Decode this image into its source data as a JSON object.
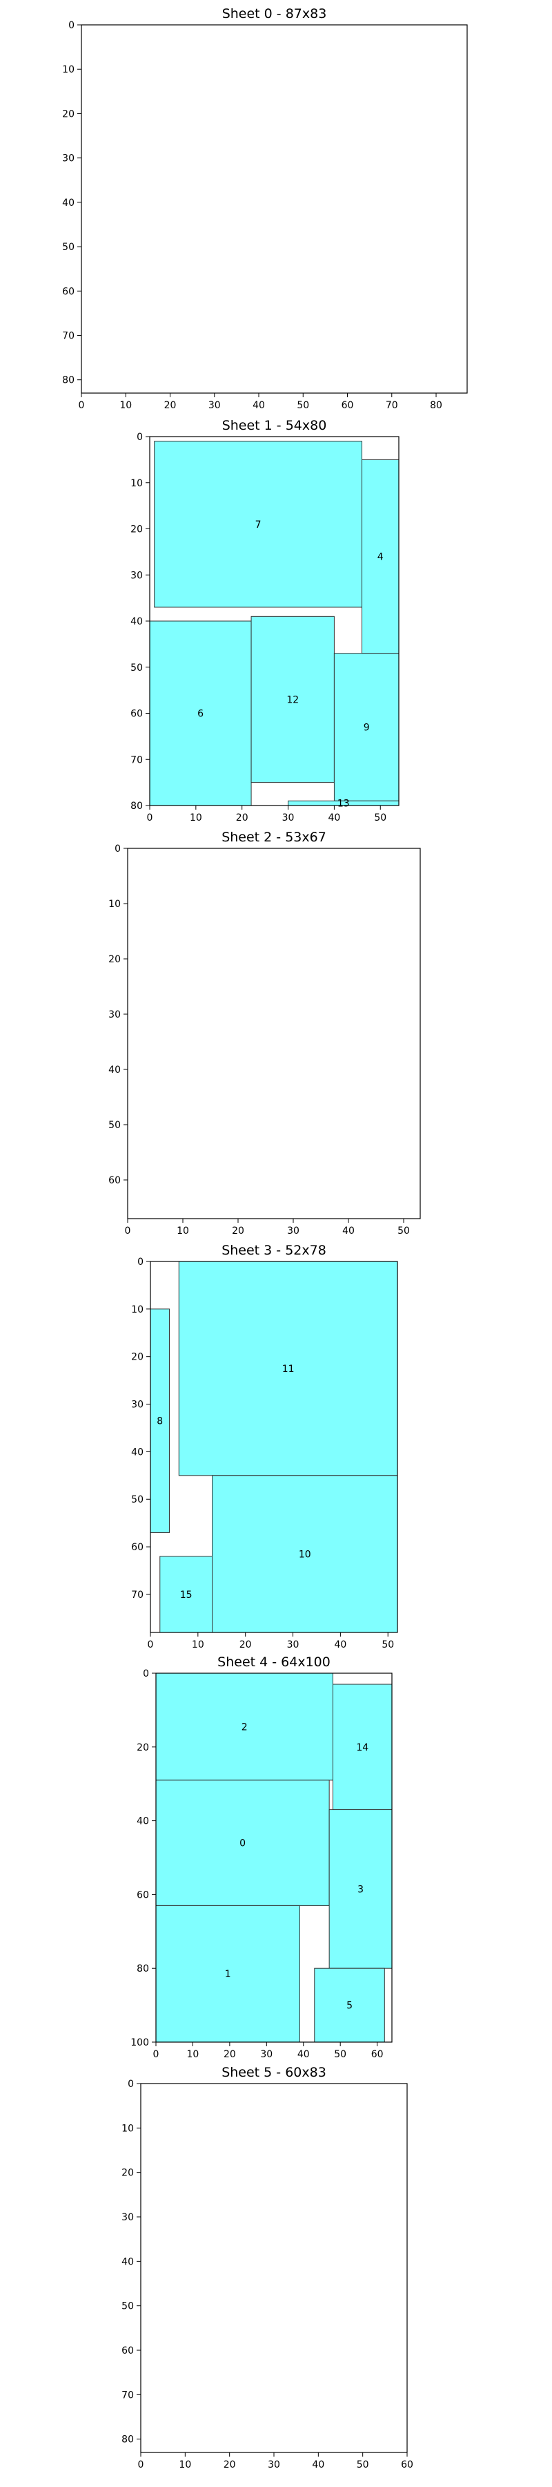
{
  "chart_data": [
    {
      "type": "rectangles",
      "title": "Sheet 0 - 87x83",
      "xlim": [
        0,
        87
      ],
      "ylim": [
        83,
        0
      ],
      "xticks": [
        0,
        10,
        20,
        30,
        40,
        50,
        60,
        70,
        80
      ],
      "yticks": [
        0,
        10,
        20,
        30,
        40,
        50,
        60,
        70,
        80
      ],
      "rects": []
    },
    {
      "type": "rectangles",
      "title": "Sheet 1 - 54x80",
      "xlim": [
        0,
        54
      ],
      "ylim": [
        80,
        0
      ],
      "xticks": [
        0,
        10,
        20,
        30,
        40,
        50
      ],
      "yticks": [
        0,
        10,
        20,
        30,
        40,
        50,
        60,
        70,
        80
      ],
      "rects": [
        {
          "label": "7",
          "x": 1,
          "y": 1,
          "w": 45,
          "h": 36
        },
        {
          "label": "4",
          "x": 46,
          "y": 5,
          "w": 8,
          "h": 42
        },
        {
          "label": "6",
          "x": 0,
          "y": 40,
          "w": 22,
          "h": 40
        },
        {
          "label": "12",
          "x": 22,
          "y": 39,
          "w": 18,
          "h": 36
        },
        {
          "label": "9",
          "x": 40,
          "y": 47,
          "w": 14,
          "h": 32
        },
        {
          "label": "13",
          "x": 30,
          "y": 79,
          "w": 24,
          "h": 1
        }
      ]
    },
    {
      "type": "rectangles",
      "title": "Sheet 2 - 53x67",
      "xlim": [
        0,
        53
      ],
      "ylim": [
        67,
        0
      ],
      "xticks": [
        0,
        10,
        20,
        30,
        40,
        50
      ],
      "yticks": [
        0,
        10,
        20,
        30,
        40,
        50,
        60
      ],
      "rects": []
    },
    {
      "type": "rectangles",
      "title": "Sheet 3 - 52x78",
      "xlim": [
        0,
        52
      ],
      "ylim": [
        78,
        0
      ],
      "xticks": [
        0,
        10,
        20,
        30,
        40,
        50
      ],
      "yticks": [
        0,
        10,
        20,
        30,
        40,
        50,
        60,
        70
      ],
      "rects": [
        {
          "label": "11",
          "x": 6,
          "y": 0,
          "w": 46,
          "h": 45
        },
        {
          "label": "8",
          "x": 0,
          "y": 10,
          "w": 4,
          "h": 47
        },
        {
          "label": "10",
          "x": 13,
          "y": 45,
          "w": 39,
          "h": 33
        },
        {
          "label": "15",
          "x": 2,
          "y": 62,
          "w": 11,
          "h": 16
        }
      ]
    },
    {
      "type": "rectangles",
      "title": "Sheet 4 - 64x100",
      "xlim": [
        0,
        64
      ],
      "ylim": [
        100,
        0
      ],
      "xticks": [
        0,
        10,
        20,
        30,
        40,
        50,
        60
      ],
      "yticks": [
        0,
        20,
        40,
        60,
        80,
        100
      ],
      "rects": [
        {
          "label": "2",
          "x": 0,
          "y": 0,
          "w": 48,
          "h": 29
        },
        {
          "label": "14",
          "x": 48,
          "y": 3,
          "w": 16,
          "h": 34
        },
        {
          "label": "0",
          "x": 0,
          "y": 29,
          "w": 47,
          "h": 34
        },
        {
          "label": "3",
          "x": 47,
          "y": 37,
          "w": 17,
          "h": 43
        },
        {
          "label": "1",
          "x": 0,
          "y": 63,
          "w": 39,
          "h": 37
        },
        {
          "label": "5",
          "x": 43,
          "y": 80,
          "w": 19,
          "h": 20
        }
      ]
    },
    {
      "type": "rectangles",
      "title": "Sheet 5 - 60x83",
      "xlim": [
        0,
        60
      ],
      "ylim": [
        83,
        0
      ],
      "xticks": [
        0,
        10,
        20,
        30,
        40,
        50,
        60
      ],
      "yticks": [
        0,
        10,
        20,
        30,
        40,
        50,
        60,
        70,
        80
      ],
      "rects": []
    }
  ],
  "colors": {
    "rect_fill": "#80ffff",
    "rect_stroke": "#333333",
    "axis": "#000000"
  }
}
